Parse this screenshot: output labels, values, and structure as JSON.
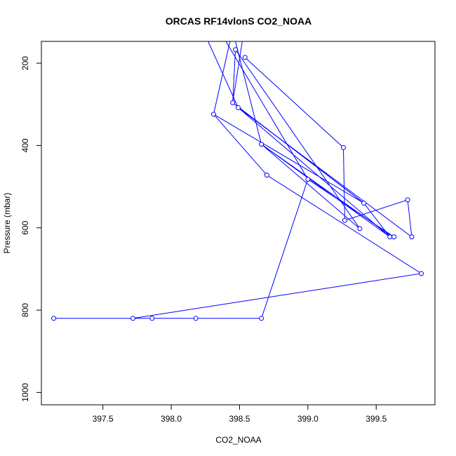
{
  "chart_data": {
    "type": "line",
    "title": "ORCAS RF14vlonS CO2_NOAA",
    "xlabel": "CO2_NOAA",
    "ylabel": "Pressure (mbar)",
    "xlim": [
      397.05,
      399.93
    ],
    "ylim": [
      1030,
      147
    ],
    "y_reversed": true,
    "x_ticks": [
      397.5,
      398.0,
      398.5,
      399.0,
      399.5
    ],
    "x_tick_labels": [
      "397.5",
      "398.0",
      "398.5",
      "399.0",
      "399.5"
    ],
    "y_ticks": [
      200,
      400,
      600,
      800,
      1000
    ],
    "y_tick_labels": [
      "200",
      "400",
      "600",
      "800",
      "1000"
    ],
    "grid": false,
    "legend": "none",
    "series": [
      {
        "color": "#0000ff",
        "marker": "open-circle",
        "segments": [
          {
            "x": [
              398.27,
              398.49
            ],
            "y": [
              147,
              308
            ],
            "markers": false
          },
          {
            "x": [
              398.4,
              399.0
            ],
            "y": [
              147,
              482
            ],
            "markers": false
          },
          {
            "x": [
              398.47,
              398.66,
              399.62
            ],
            "y": [
              147,
              397,
              622
            ],
            "markers": false
          },
          {
            "x": [
              398.52,
              398.45,
              399.41,
              399.6
            ],
            "y": [
              147,
              296,
              540,
              622
            ],
            "markers": false
          },
          {
            "x": [
              398.43,
              398.31
            ],
            "y": [
              147,
              324
            ],
            "markers": false
          }
        ],
        "x": [
          398.54,
          399.26,
          399.27,
          399.73,
          399.76,
          398.49,
          399.6,
          398.66,
          399.38,
          398.47,
          398.45,
          399.41,
          398.31,
          398.7,
          399.83,
          397.72,
          397.14,
          397.86,
          398.18,
          398.66,
          399.0,
          399.63
        ],
        "y": [
          186,
          405,
          582,
          532,
          622,
          308,
          622,
          397,
          602,
          167,
          296,
          540,
          324,
          472,
          711,
          820,
          820,
          820,
          820,
          820,
          482,
          622
        ]
      }
    ]
  }
}
